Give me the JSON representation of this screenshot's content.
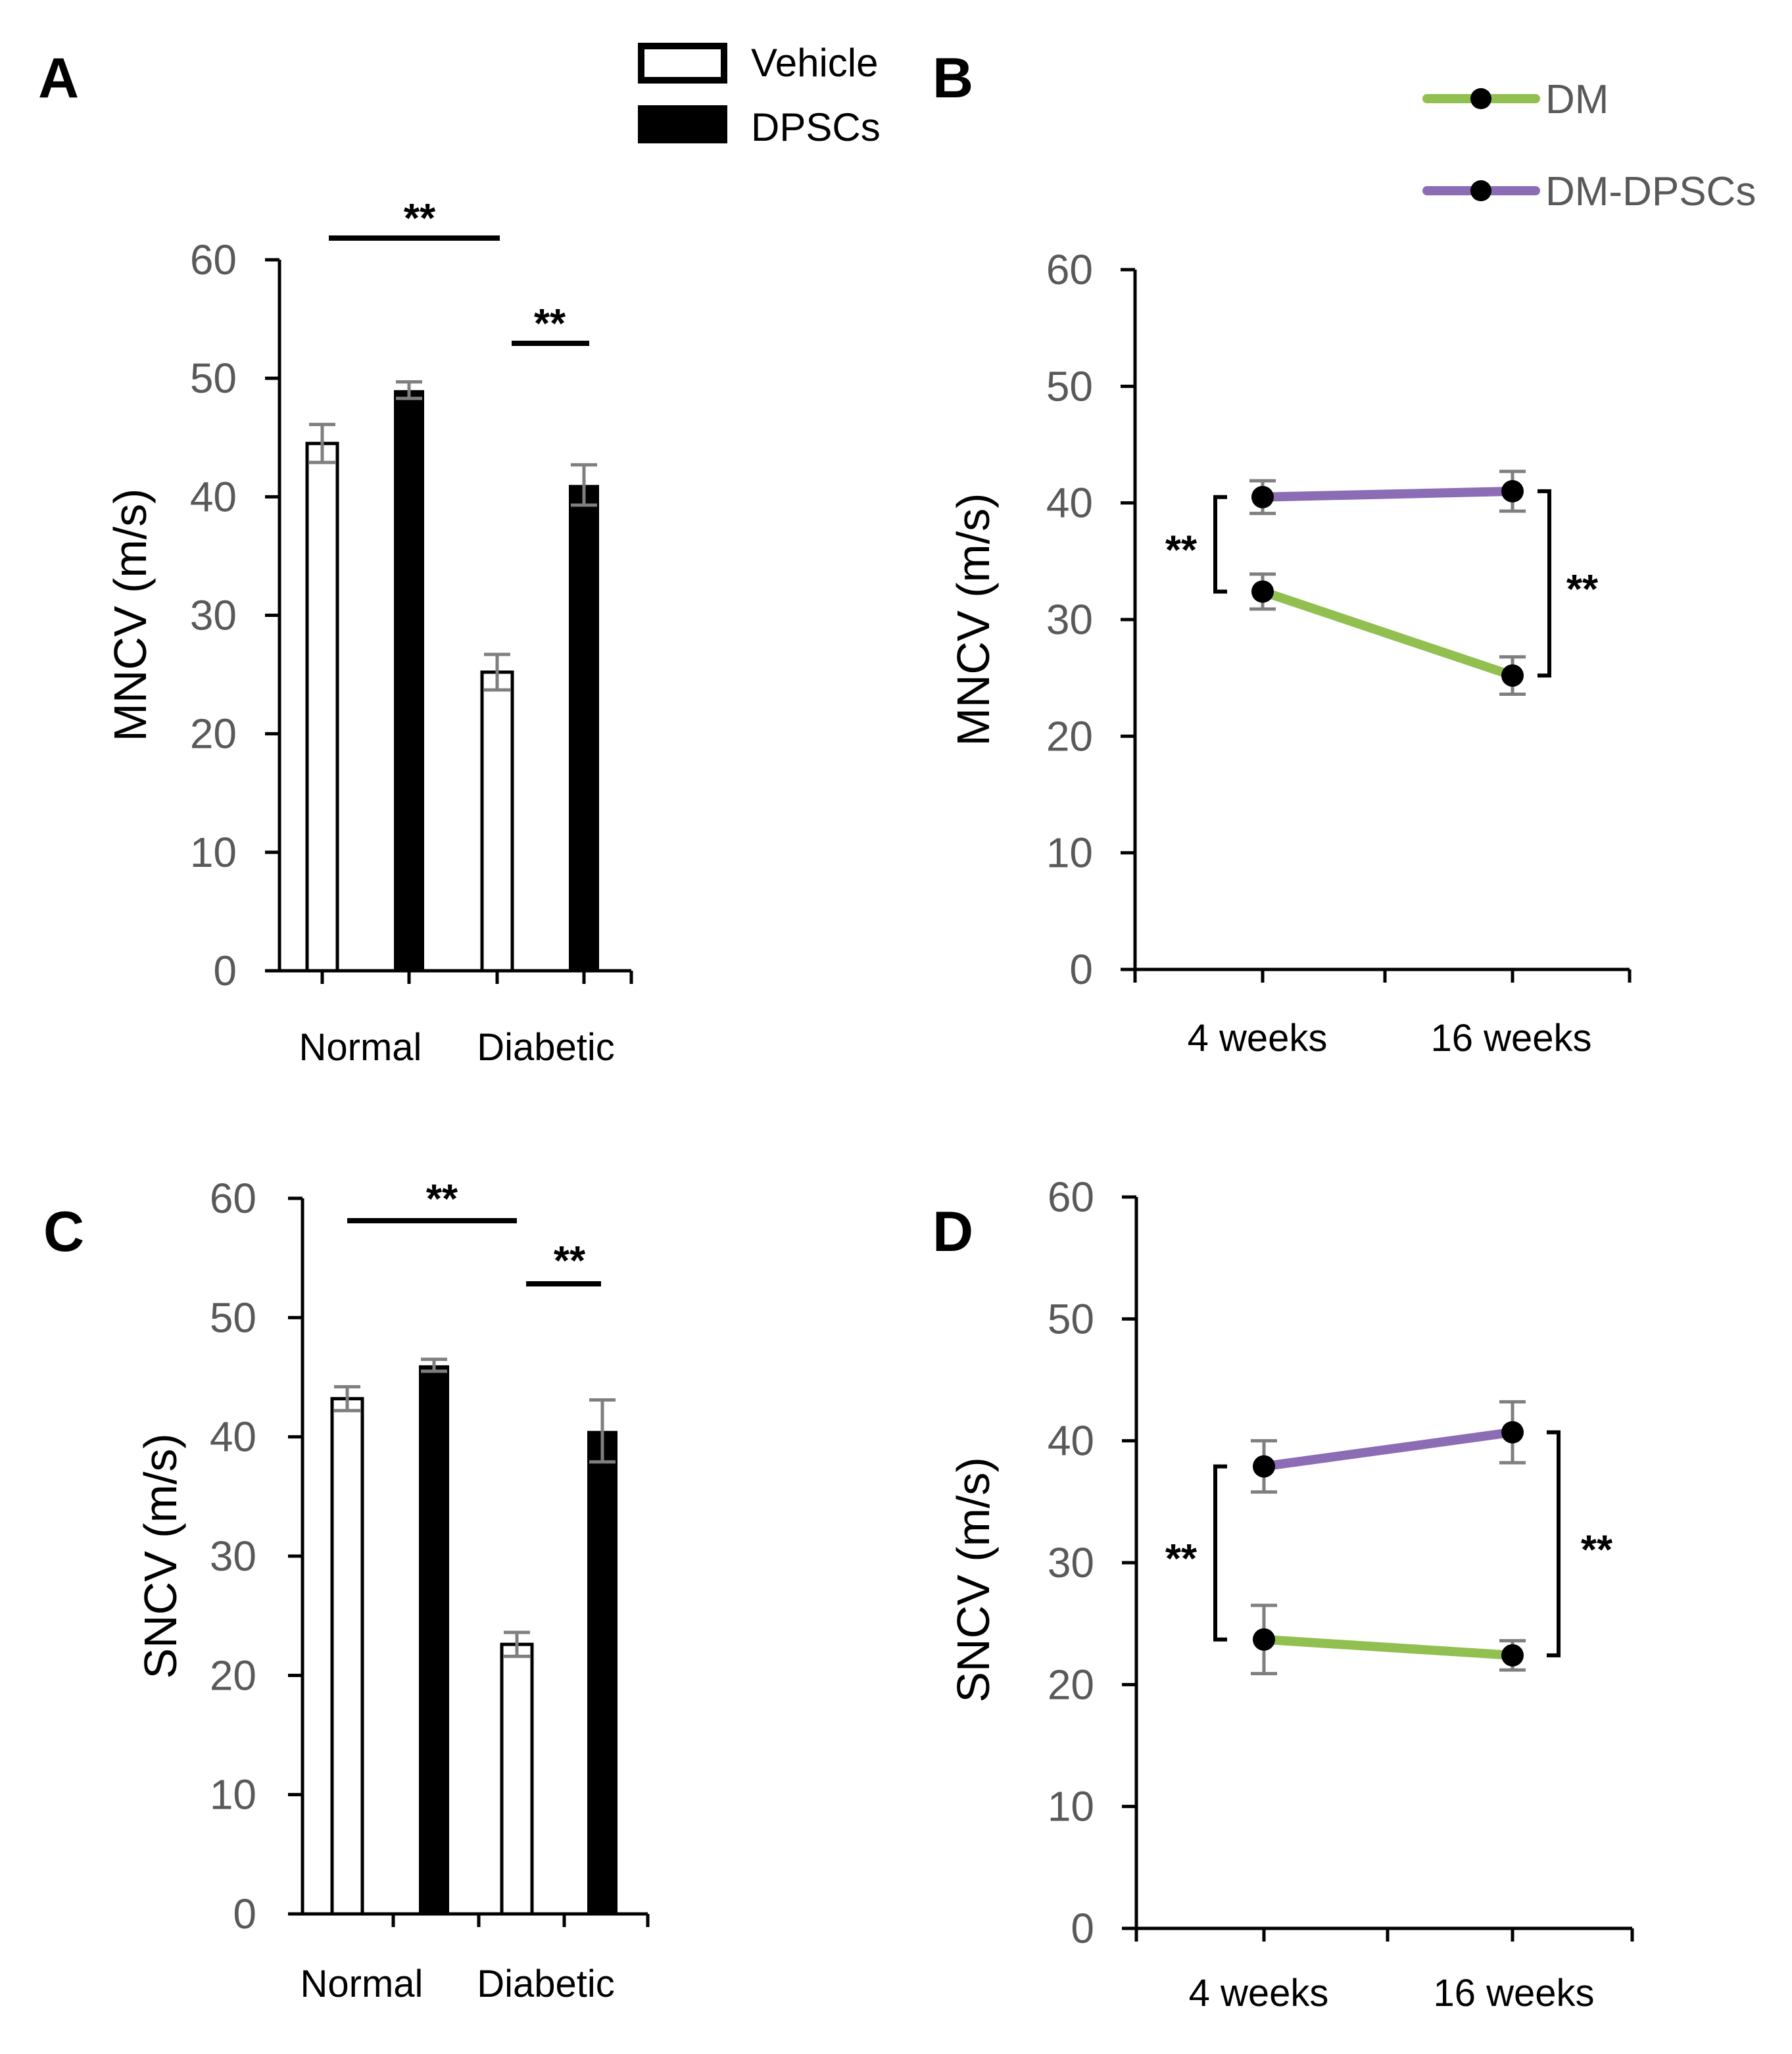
{
  "panels": {
    "A": "A",
    "B": "B",
    "C": "C",
    "D": "D"
  },
  "legend_bar": {
    "vehicle": "Vehicle",
    "dpscs": "DPSCs"
  },
  "legend_line": {
    "dm": "DM",
    "dm_dpscs": "DM-DPSCs",
    "dm_color": "#92c050",
    "dm_dpscs_color": "#8c6cb4"
  },
  "chart_data": [
    {
      "type": "bar",
      "panel": "A",
      "ylabel": "MNCV (m/s)",
      "categories": [
        "Normal",
        "Diabetic"
      ],
      "ylim": [
        0,
        60
      ],
      "yticks": [
        0,
        10,
        20,
        30,
        40,
        50,
        60
      ],
      "series": [
        {
          "name": "Vehicle",
          "values": [
            44.5,
            25.2
          ],
          "errors": [
            1.6,
            1.5
          ]
        },
        {
          "name": "DPSCs",
          "values": [
            49.0,
            41.0
          ],
          "errors": [
            0.7,
            1.7
          ]
        }
      ],
      "significance": [
        {
          "label": "**",
          "between": [
            "Normal",
            "Diabetic"
          ]
        },
        {
          "label": "**",
          "between": [
            "Diabetic Vehicle",
            "Diabetic DPSCs"
          ]
        }
      ]
    },
    {
      "type": "line",
      "panel": "B",
      "ylabel": "MNCV (m/s)",
      "x": [
        "4 weeks",
        "16 weeks"
      ],
      "ylim": [
        0,
        60
      ],
      "yticks": [
        0,
        10,
        20,
        30,
        40,
        50,
        60
      ],
      "series": [
        {
          "name": "DM",
          "values": [
            32.4,
            25.2
          ],
          "errors": [
            1.5,
            1.6
          ]
        },
        {
          "name": "DM-DPSCs",
          "values": [
            40.5,
            41.0
          ],
          "errors": [
            1.4,
            1.7
          ]
        }
      ],
      "significance": [
        {
          "label": "**",
          "at": "4 weeks"
        },
        {
          "label": "**",
          "at": "16 weeks"
        }
      ]
    },
    {
      "type": "bar",
      "panel": "C",
      "ylabel": "SNCV (m/s)",
      "categories": [
        "Normal",
        "Diabetic"
      ],
      "ylim": [
        0,
        60
      ],
      "yticks": [
        0,
        10,
        20,
        30,
        40,
        50,
        60
      ],
      "series": [
        {
          "name": "Vehicle",
          "values": [
            43.2,
            22.6
          ],
          "errors": [
            1.0,
            1.0
          ]
        },
        {
          "name": "DPSCs",
          "values": [
            46.0,
            40.5
          ],
          "errors": [
            0.5,
            2.6
          ]
        }
      ],
      "significance": [
        {
          "label": "**",
          "between": [
            "Normal",
            "Diabetic"
          ]
        },
        {
          "label": "**",
          "between": [
            "Diabetic Vehicle",
            "Diabetic DPSCs"
          ]
        }
      ]
    },
    {
      "type": "line",
      "panel": "D",
      "ylabel": "SNCV (m/s)",
      "x": [
        "4 weeks",
        "16 weeks"
      ],
      "ylim": [
        0,
        60
      ],
      "yticks": [
        0,
        10,
        20,
        30,
        40,
        50,
        60
      ],
      "series": [
        {
          "name": "DM",
          "values": [
            23.7,
            22.4
          ],
          "errors": [
            2.8,
            1.2
          ]
        },
        {
          "name": "DM-DPSCs",
          "values": [
            37.9,
            40.7
          ],
          "errors": [
            2.1,
            2.5
          ]
        }
      ],
      "significance": [
        {
          "label": "**",
          "at": "4 weeks"
        },
        {
          "label": "**",
          "at": "16 weeks"
        }
      ]
    }
  ]
}
